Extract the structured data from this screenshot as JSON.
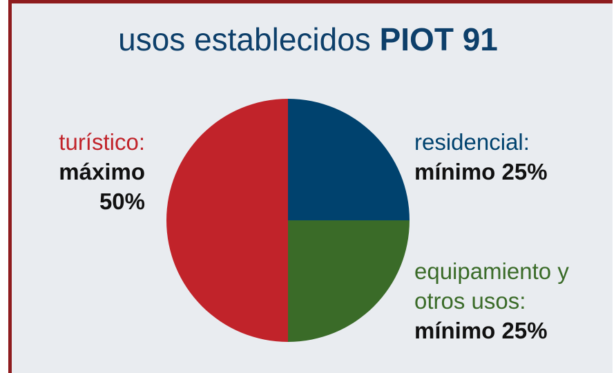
{
  "chart_data": {
    "type": "pie",
    "title": [
      "usos establecidos",
      "PIOT 91"
    ],
    "categories": [
      "residencial:",
      "equipamiento y otros usos:",
      "turístico:"
    ],
    "values": [
      25,
      25,
      50
    ],
    "value_labels": [
      "mínimo 25%",
      "mínimo 25%",
      "máximo 50%"
    ],
    "colors": [
      "#00426e",
      "#3a6b28",
      "#c1232a"
    ]
  }
}
